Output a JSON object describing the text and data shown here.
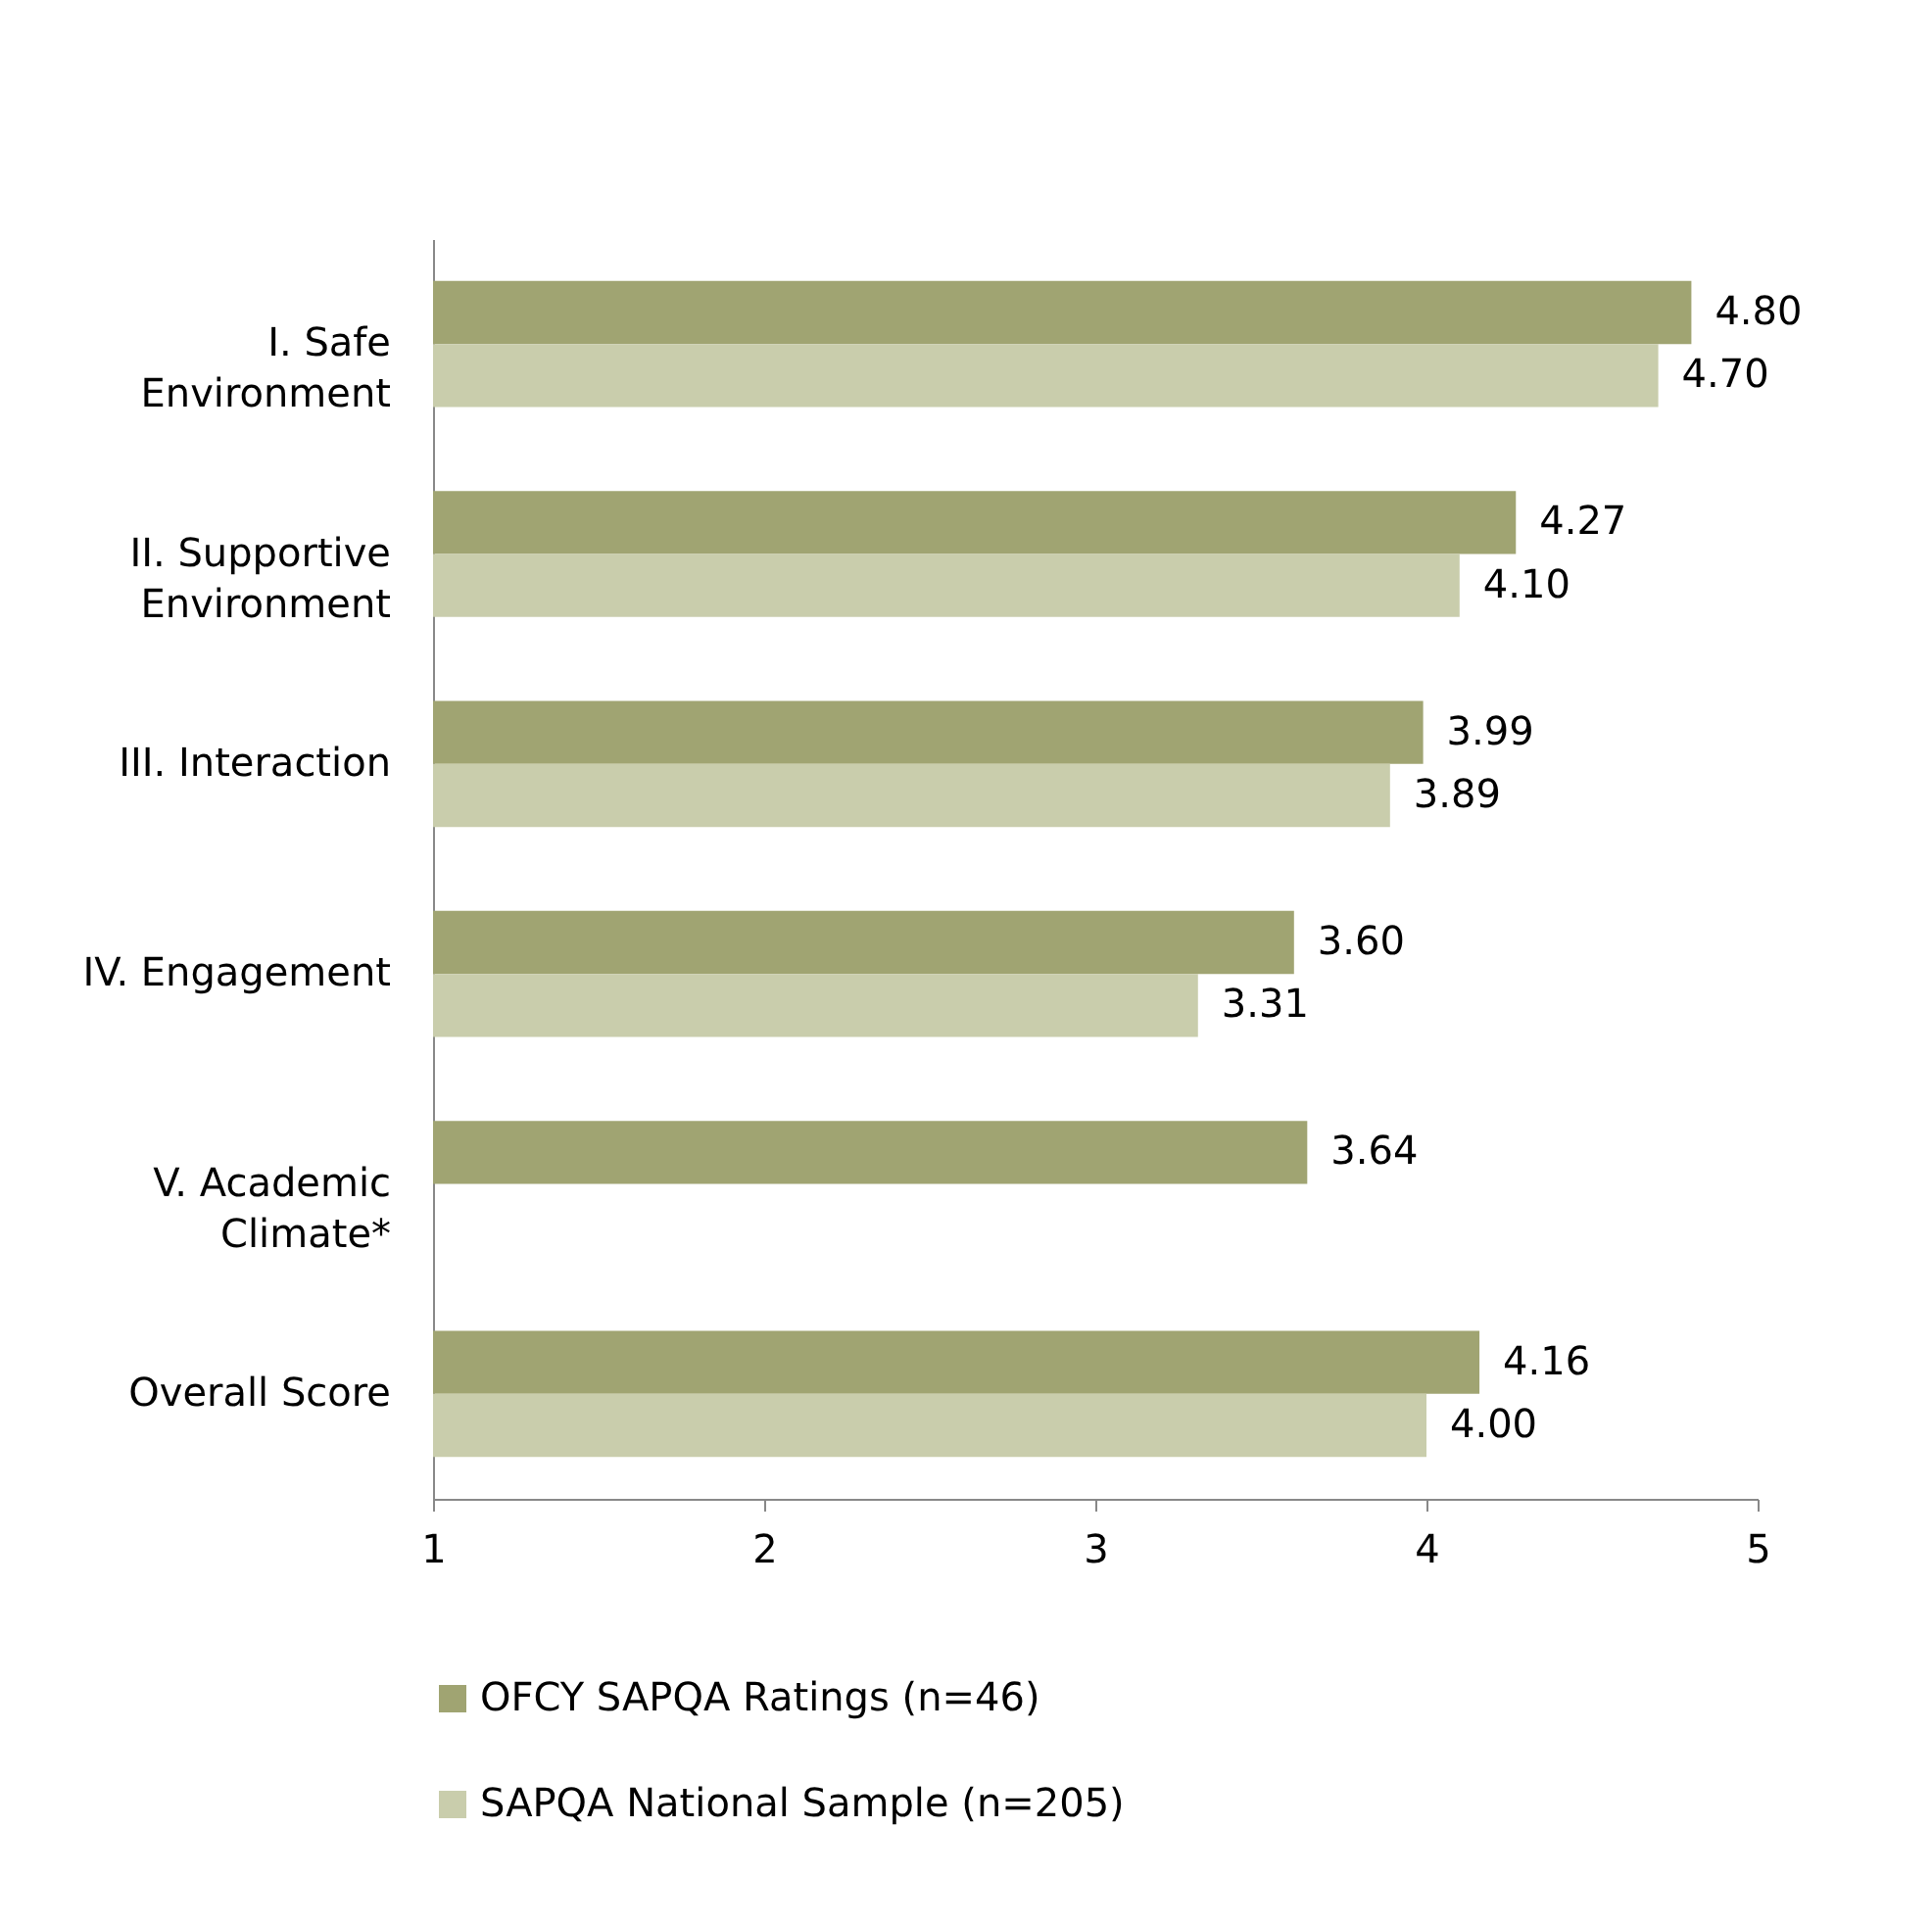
{
  "chart_data": {
    "type": "bar",
    "orientation": "horizontal",
    "categories": [
      "I. Safe Environment",
      "II. Supportive Environment",
      "III. Interaction",
      "IV. Engagement",
      "V. Academic Climate*",
      "Overall Score"
    ],
    "series": [
      {
        "name": "OFCY SAPQA Ratings (n=46)",
        "color": "#a0a472",
        "values": [
          4.8,
          4.27,
          3.99,
          3.6,
          3.64,
          4.16
        ],
        "value_labels": [
          "4.80",
          "4.27",
          "3.99",
          "3.60",
          "3.64",
          "4.16"
        ]
      },
      {
        "name": "SAPQA National Sample (n=205)",
        "color": "#c9cdac",
        "values": [
          4.7,
          4.1,
          3.89,
          3.31,
          null,
          4.0
        ],
        "value_labels": [
          "4.70",
          "4.10",
          "3.89",
          "3.31",
          null,
          "4.00"
        ]
      }
    ],
    "xlim": [
      1,
      5
    ],
    "xticks": [
      1,
      2,
      3,
      4,
      5
    ],
    "legend": "bottom"
  }
}
